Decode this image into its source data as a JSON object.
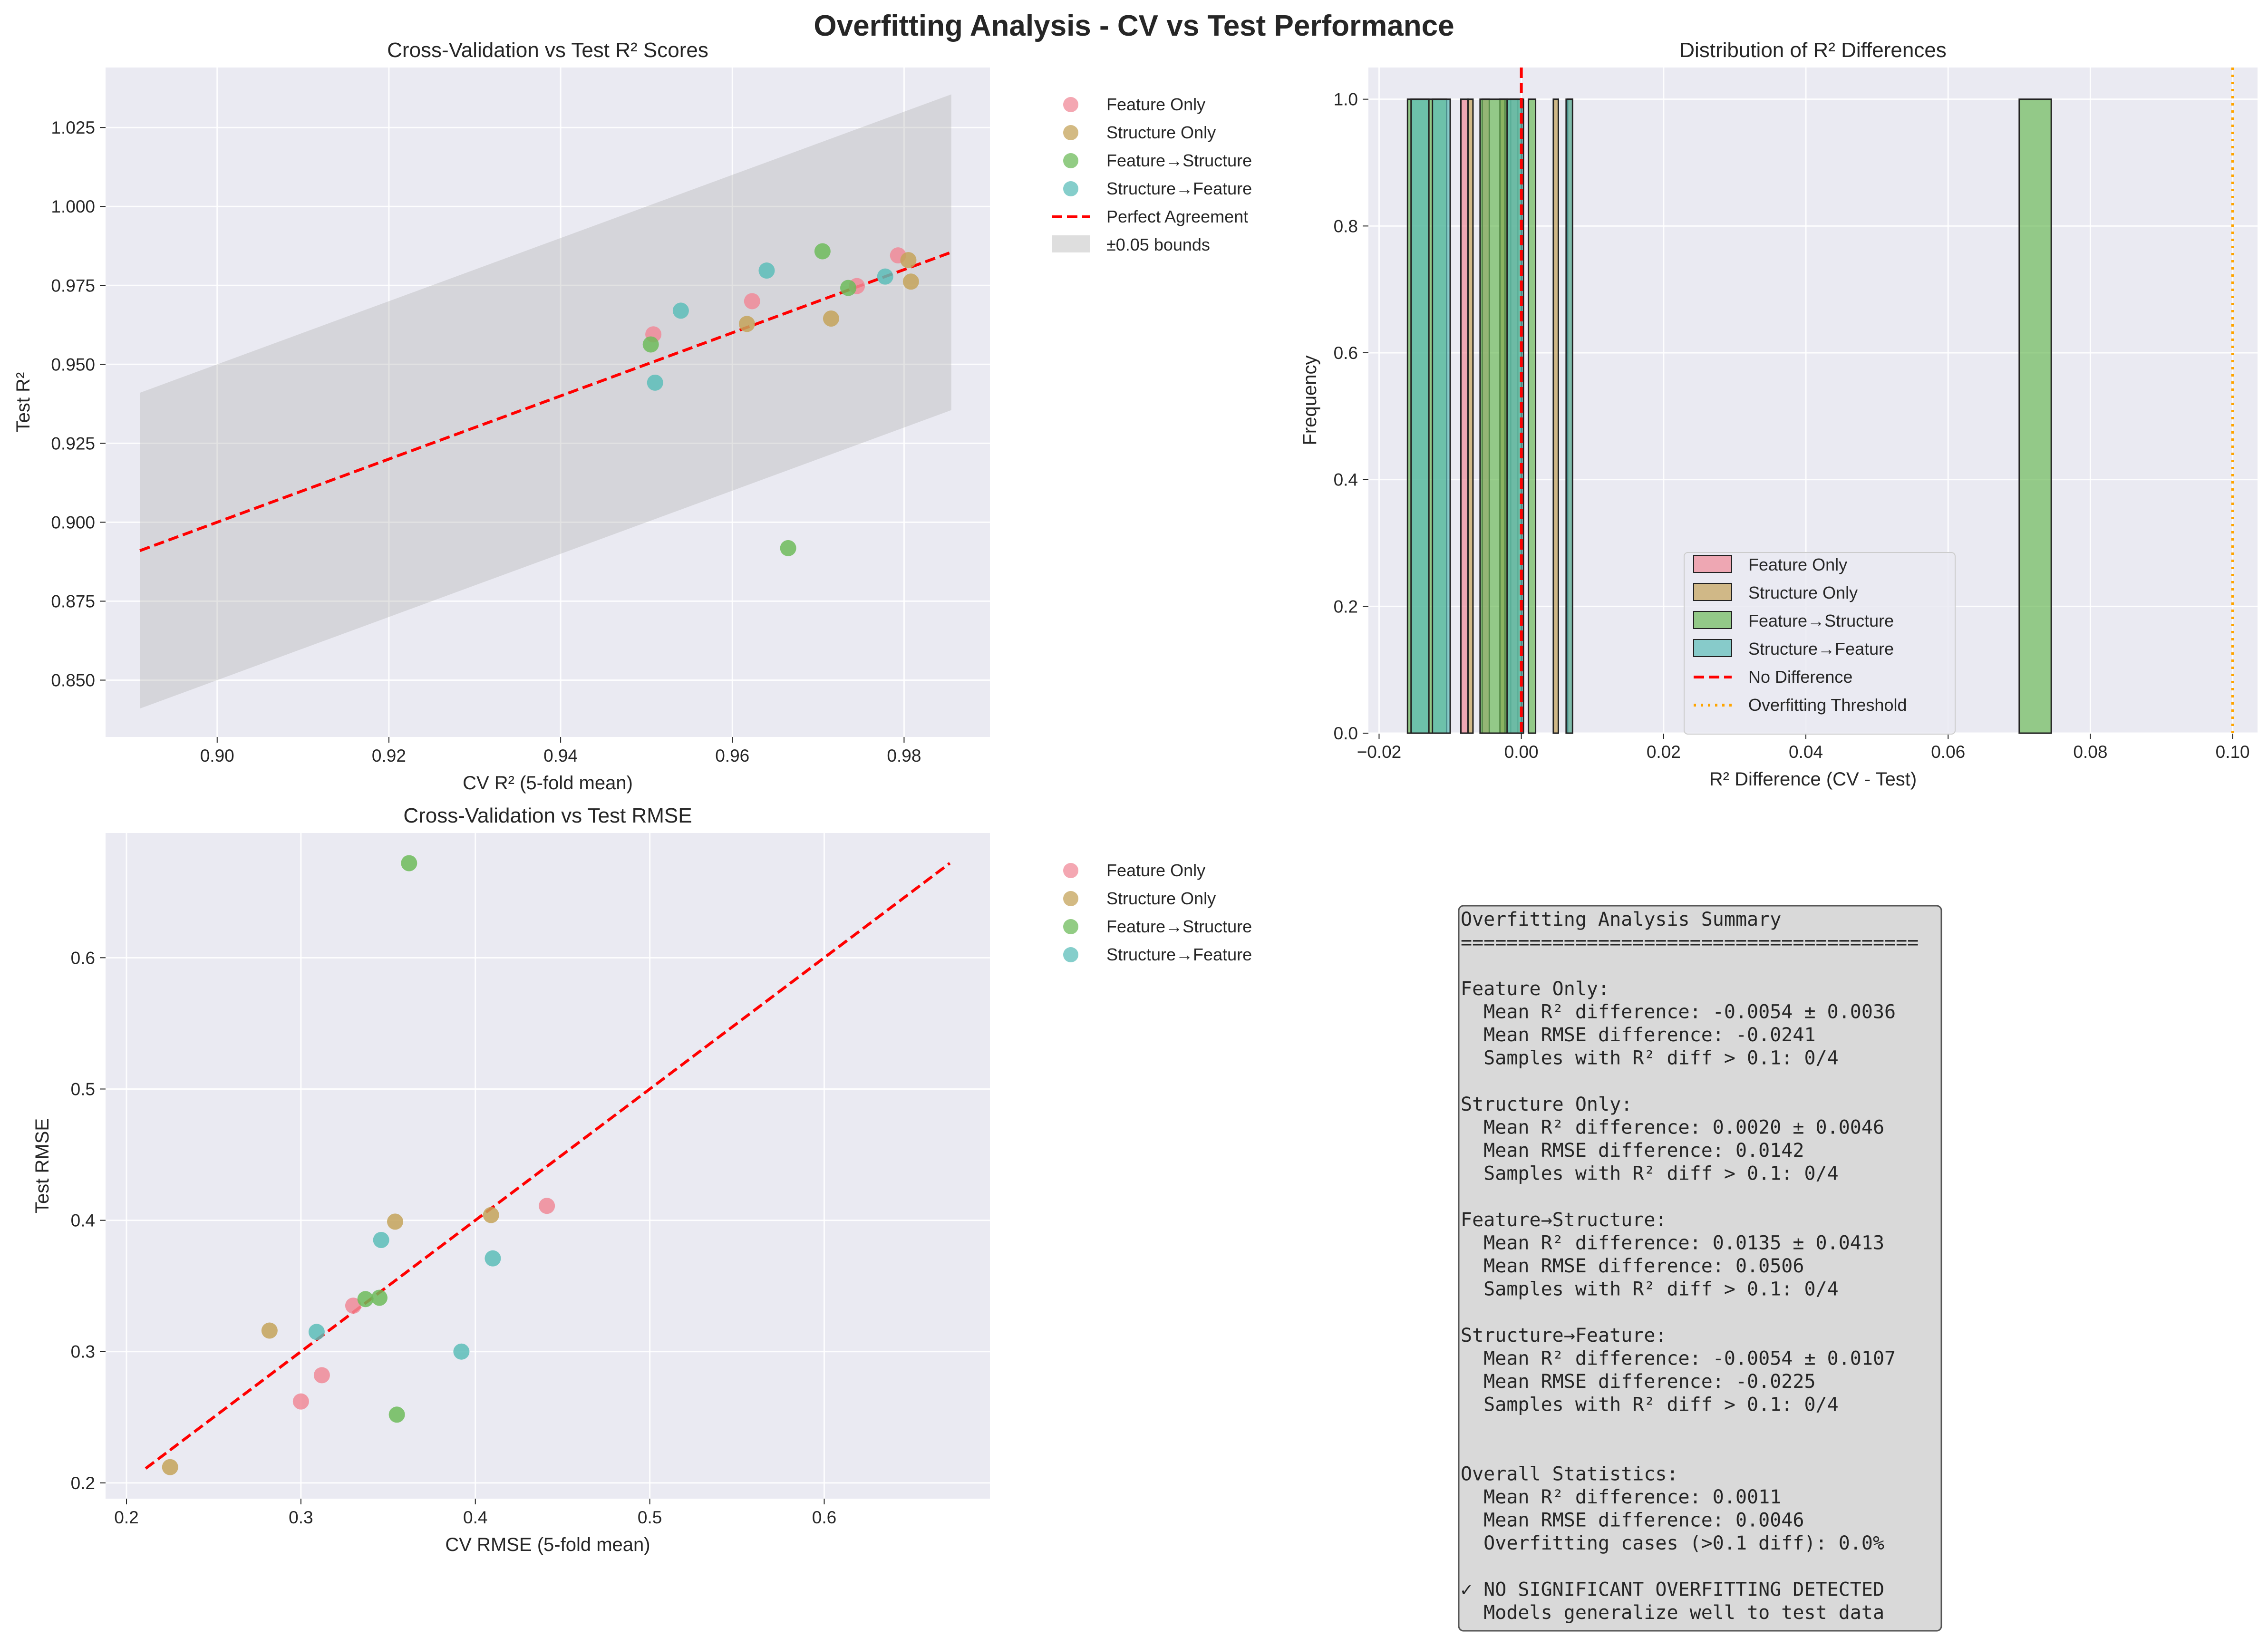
{
  "figure": {
    "suptitle": "Overfitting Analysis - CV vs Test Performance"
  },
  "series_colors": {
    "Feature Only": "#f08a98",
    "Structure Only": "#c4a35a",
    "Feature→Structure": "#6dbb5b",
    "Structure→Feature": "#5cbdb9"
  },
  "chart_data": [
    {
      "id": "r2_scatter",
      "type": "scatter",
      "title": "Cross-Validation vs Test R² Scores",
      "xlabel": "CV R² (5-fold mean)",
      "ylabel": "Test R²",
      "xlim": [
        0.887,
        0.99
      ],
      "ylim": [
        0.832,
        1.044
      ],
      "xticks": [
        "0.90",
        "0.92",
        "0.94",
        "0.96",
        "0.98"
      ],
      "yticks": [
        "0.850",
        "0.875",
        "0.900",
        "0.925",
        "0.950",
        "0.975",
        "1.000",
        "1.025"
      ],
      "grid": true,
      "legend_position": "outside-right",
      "legend": [
        "Feature Only",
        "Structure Only",
        "Feature→Structure",
        "Structure→Feature",
        "Perfect Agreement",
        "±0.05 bounds"
      ],
      "reference_line": {
        "name": "Perfect Agreement",
        "x": [
          0.891,
          0.9855
        ],
        "y": [
          0.891,
          0.9855
        ]
      },
      "bounds": {
        "name": "±0.05 bounds",
        "x": [
          0.891,
          0.9855
        ],
        "offset": 0.05
      },
      "series": [
        {
          "name": "Feature Only",
          "points": [
            [
              0.9508,
              0.9595
            ],
            [
              0.9623,
              0.97
            ],
            [
              0.9793,
              0.9845
            ],
            [
              0.9745,
              0.9748
            ]
          ]
        },
        {
          "name": "Structure Only",
          "points": [
            [
              0.9617,
              0.9628
            ],
            [
              0.9715,
              0.9645
            ],
            [
              0.9805,
              0.983
            ],
            [
              0.9808,
              0.9762
            ]
          ]
        },
        {
          "name": "Feature→Structure",
          "points": [
            [
              0.9505,
              0.9563
            ],
            [
              0.9705,
              0.9858
            ],
            [
              0.9735,
              0.9742
            ],
            [
              0.9665,
              0.8918
            ]
          ]
        },
        {
          "name": "Structure→Feature",
          "points": [
            [
              0.951,
              0.9442
            ],
            [
              0.954,
              0.967
            ],
            [
              0.964,
              0.9797
            ],
            [
              0.9778,
              0.9778
            ]
          ]
        }
      ]
    },
    {
      "id": "r2_diff_hist",
      "type": "bar",
      "title": "Distribution of R² Differences",
      "xlabel": "R² Difference (CV - Test)",
      "ylabel": "Frequency",
      "xlim": [
        -0.0215,
        0.1035
      ],
      "ylim": [
        0,
        1.05
      ],
      "xticks": [
        "−0.02",
        "0.00",
        "0.02",
        "0.04",
        "0.06",
        "0.08",
        "0.10"
      ],
      "yticks": [
        "0.0",
        "0.2",
        "0.4",
        "0.6",
        "0.8",
        "1.0"
      ],
      "grid": true,
      "legend_position": "lower-center",
      "legend": [
        "Feature Only",
        "Structure Only",
        "Feature→Structure",
        "Structure→Feature",
        "No Difference",
        "Overfitting Threshold"
      ],
      "no_difference_x": 0.0,
      "overfitting_threshold_x": 0.1,
      "series": [
        {
          "name": "Feature Only",
          "bins": [
            [
              -0.0085,
              -0.0075,
              1
            ],
            [
              -0.0055,
              -0.0045,
              1
            ],
            [
              -0.003,
              -0.002,
              1
            ],
            [
              -0.0015,
              -0.0005,
              1
            ]
          ]
        },
        {
          "name": "Structure Only",
          "bins": [
            [
              -0.0075,
              -0.0068,
              1
            ],
            [
              -0.003,
              -0.0023,
              1
            ],
            [
              0.0045,
              0.0052,
              1
            ],
            [
              0.0065,
              0.0072,
              1
            ]
          ]
        },
        {
          "name": "Feature→Structure",
          "bins": [
            [
              -0.016,
              -0.0105,
              1
            ],
            [
              -0.0058,
              0.0,
              1
            ],
            [
              0.001,
              0.002,
              1
            ],
            [
              0.07,
              0.0745,
              1
            ]
          ]
        },
        {
          "name": "Structure→Feature",
          "bins": [
            [
              -0.0155,
              -0.013,
              1
            ],
            [
              -0.0125,
              -0.01,
              1
            ],
            [
              -0.002,
              0.0003,
              1
            ],
            [
              0.0063,
              0.0072,
              1
            ]
          ]
        }
      ]
    },
    {
      "id": "rmse_scatter",
      "type": "scatter",
      "title": "Cross-Validation vs Test RMSE",
      "xlabel": "CV RMSE (5-fold mean)",
      "ylabel": "Test RMSE",
      "xlim": [
        0.188,
        0.695
      ],
      "ylim": [
        0.188,
        0.695
      ],
      "xticks": [
        "0.2",
        "0.3",
        "0.4",
        "0.5",
        "0.6"
      ],
      "yticks": [
        "0.2",
        "0.3",
        "0.4",
        "0.5",
        "0.6"
      ],
      "grid": true,
      "legend_position": "outside-right",
      "legend": [
        "Feature Only",
        "Structure Only",
        "Feature→Structure",
        "Structure→Feature"
      ],
      "reference_line": {
        "x": [
          0.211,
          0.672
        ],
        "y": [
          0.211,
          0.672
        ]
      },
      "series": [
        {
          "name": "Feature Only",
          "points": [
            [
              0.3,
              0.262
            ],
            [
              0.312,
              0.282
            ],
            [
              0.33,
              0.335
            ],
            [
              0.441,
              0.411
            ]
          ]
        },
        {
          "name": "Structure Only",
          "points": [
            [
              0.225,
              0.212
            ],
            [
              0.282,
              0.316
            ],
            [
              0.354,
              0.399
            ],
            [
              0.409,
              0.404
            ]
          ]
        },
        {
          "name": "Feature→Structure",
          "points": [
            [
              0.337,
              0.34
            ],
            [
              0.345,
              0.341
            ],
            [
              0.355,
              0.252
            ],
            [
              0.362,
              0.672
            ]
          ]
        },
        {
          "name": "Structure→Feature",
          "points": [
            [
              0.309,
              0.315
            ],
            [
              0.346,
              0.385
            ],
            [
              0.392,
              0.3
            ],
            [
              0.41,
              0.371
            ]
          ]
        }
      ]
    }
  ],
  "summary": {
    "lines": [
      "Overfitting Analysis Summary",
      "========================================",
      "",
      "Feature Only:",
      "  Mean R² difference: -0.0054 ± 0.0036",
      "  Mean RMSE difference: -0.0241",
      "  Samples with R² diff > 0.1: 0/4",
      "",
      "Structure Only:",
      "  Mean R² difference: 0.0020 ± 0.0046",
      "  Mean RMSE difference: 0.0142",
      "  Samples with R² diff > 0.1: 0/4",
      "",
      "Feature→Structure:",
      "  Mean R² difference: 0.0135 ± 0.0413",
      "  Mean RMSE difference: 0.0506",
      "  Samples with R² diff > 0.1: 0/4",
      "",
      "Structure→Feature:",
      "  Mean R² difference: -0.0054 ± 0.0107",
      "  Mean RMSE difference: -0.0225",
      "  Samples with R² diff > 0.1: 0/4",
      "",
      "",
      "Overall Statistics:",
      "  Mean R² difference: 0.0011",
      "  Mean RMSE difference: 0.0046",
      "  Overfitting cases (>0.1 diff): 0.0%",
      "",
      "✓ NO SIGNIFICANT OVERFITTING DETECTED",
      "  Models generalize well to test data"
    ]
  }
}
